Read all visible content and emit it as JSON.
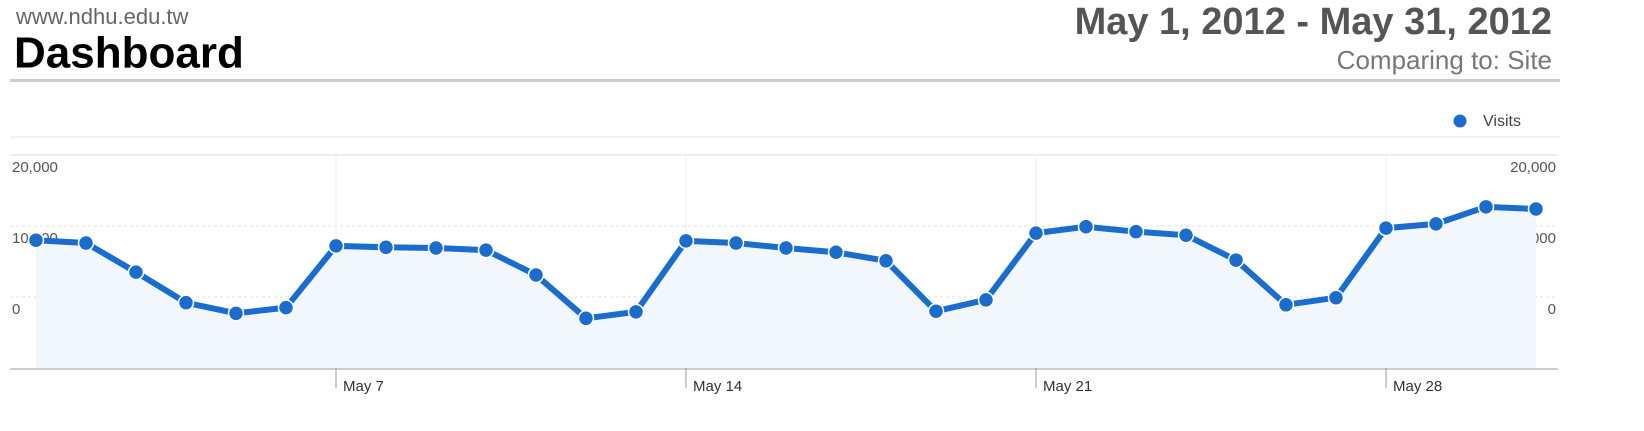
{
  "header": {
    "site": "www.ndhu.edu.tw",
    "title": "Dashboard",
    "date_range": "May 1, 2012 - May 31, 2012",
    "comparing": "Comparing to: Site"
  },
  "chart_data": {
    "type": "line",
    "categories": [
      null,
      null,
      null,
      null,
      null,
      null,
      "May 7",
      null,
      null,
      null,
      null,
      null,
      null,
      "May 14",
      null,
      null,
      null,
      null,
      null,
      null,
      "May 21",
      null,
      null,
      null,
      null,
      null,
      null,
      "May 28",
      null,
      null,
      null
    ],
    "series": [
      {
        "name": "Visits",
        "color": "#1a6dcc",
        "values": [
          8000,
          7600,
          3500,
          -800,
          -2300,
          -1500,
          7200,
          7000,
          6900,
          6600,
          3100,
          -3000,
          -2100,
          7900,
          7600,
          6900,
          6300,
          5100,
          -2000,
          -400,
          9000,
          9900,
          9200,
          8700,
          5200,
          -1100,
          -100,
          9700,
          10300,
          12700,
          12400
        ]
      }
    ],
    "ylim": [
      -10000,
      20000
    ],
    "yticks": [
      0,
      {
        "value": 10000,
        "label": "10,000"
      },
      {
        "value": 20000,
        "label": "20,000"
      }
    ],
    "grid": true,
    "area": true,
    "legend": "top-right"
  }
}
